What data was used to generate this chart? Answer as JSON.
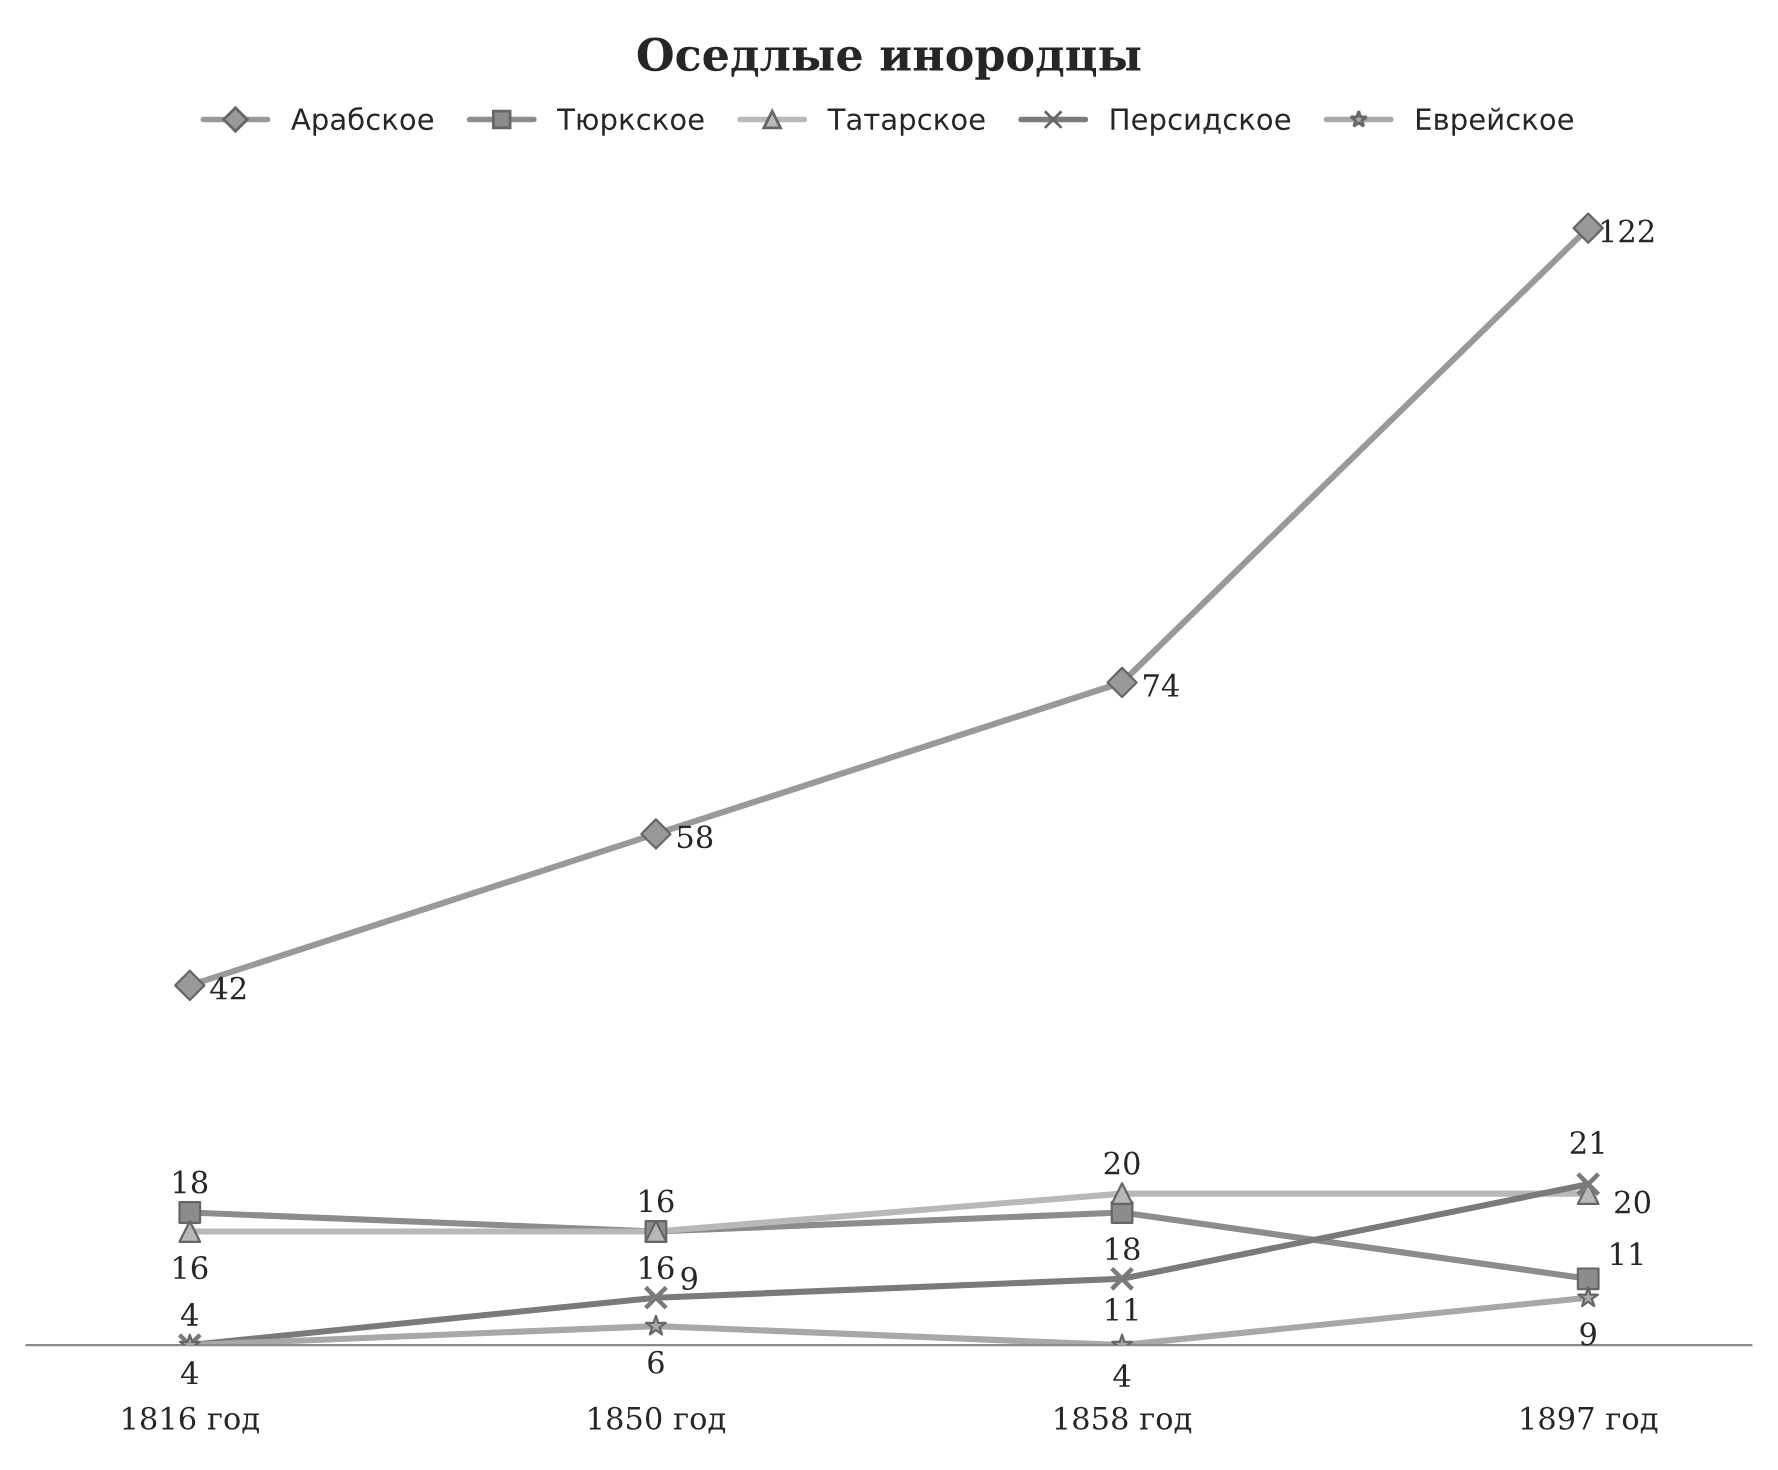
{
  "chart_data": {
    "type": "line",
    "title": "Оседлые инородцы",
    "categories": [
      "1816 год",
      "1850 год",
      "1858 год",
      "1897 год"
    ],
    "series": [
      {
        "name": "Арабское",
        "color": "#999999",
        "marker": "diamond",
        "values": [
          42,
          58,
          74,
          122
        ]
      },
      {
        "name": "Тюркское",
        "color": "#8c8c8c",
        "marker": "square",
        "values": [
          18,
          16,
          18,
          11
        ]
      },
      {
        "name": "Татарское",
        "color": "#b8b8b8",
        "marker": "triangle",
        "values": [
          16,
          16,
          20,
          20
        ]
      },
      {
        "name": "Персидское",
        "color": "#7a7a7a",
        "marker": "cross",
        "values": [
          4,
          9,
          11,
          21
        ]
      },
      {
        "name": "Еврейское",
        "color": "#a8a8a8",
        "marker": "star",
        "values": [
          4,
          6,
          4,
          9
        ]
      }
    ],
    "data_labels": true,
    "legend": "top",
    "grid": false,
    "line_style": "solid"
  }
}
